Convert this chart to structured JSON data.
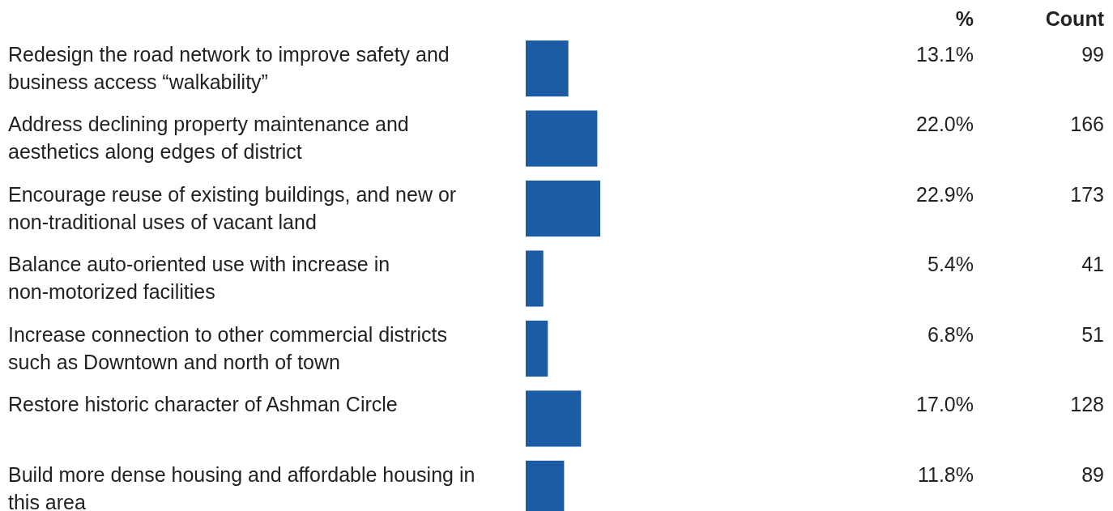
{
  "chart_data": {
    "type": "bar",
    "orientation": "horizontal",
    "color": "#1c5ca5",
    "categories": [
      "Redesign the road network to improve safety and business access “walkability”",
      "Address declining property maintenance and aesthetics along edges of district",
      "Encourage reuse of existing buildings, and new or non-traditional uses of vacant land",
      "Balance auto-oriented use with increase in non-motorized facilities",
      "Increase connection to other commercial districts such as Downtown and north of town",
      "Restore historic character of Ashman Circle",
      "Build more dense housing and affordable housing in this area"
    ],
    "values": [
      13.1,
      22.0,
      22.9,
      5.4,
      6.8,
      17.0,
      11.8
    ],
    "value_labels": [
      "13.1%",
      "22.0%",
      "22.9%",
      "5.4%",
      "6.8%",
      "17.0%",
      "11.8%"
    ],
    "annotations": [
      "%",
      "Count",
      "99",
      "166",
      "173",
      "41",
      "51",
      "128",
      "89"
    ]
  }
}
